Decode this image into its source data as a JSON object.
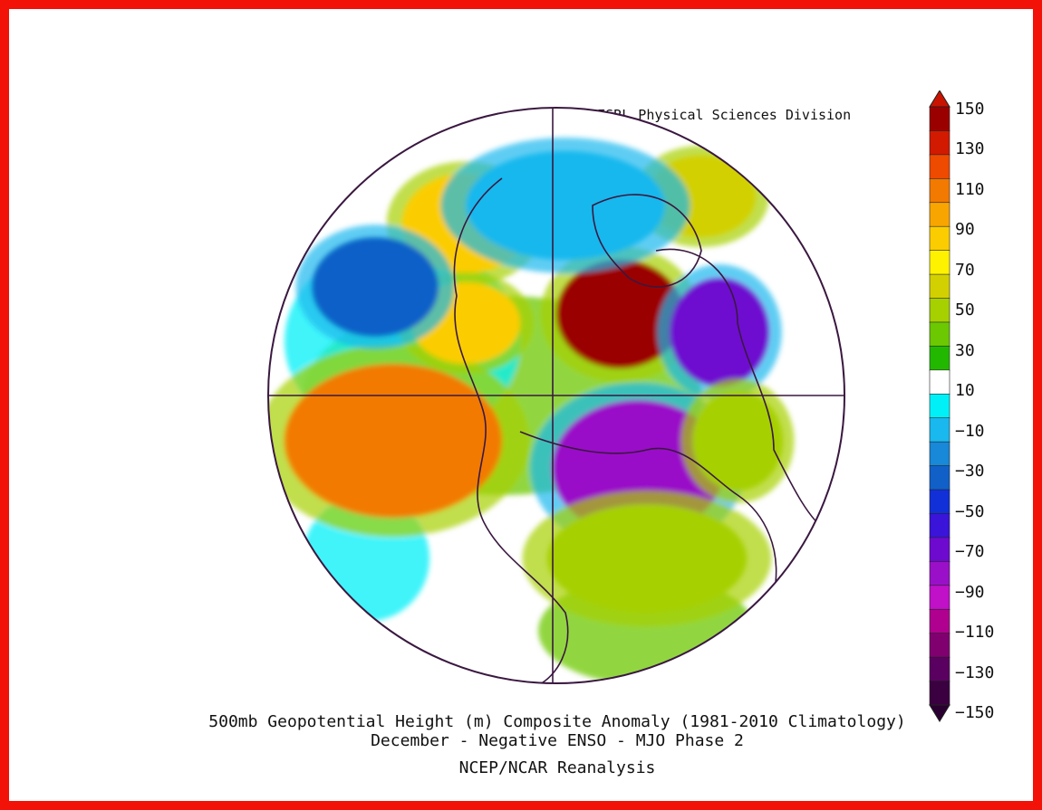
{
  "credit": "NOAA/ESRL Physical Sciences Division",
  "caption": {
    "line1": "500mb Geopotential Height (m) Composite Anomaly (1981-2010 Climatology)",
    "line2": "December - Negative ENSO - MJO Phase 2",
    "line3": "NCEP/NCAR Reanalysis"
  },
  "colorbar": {
    "labels": [
      "150",
      "130",
      "110",
      "90",
      "70",
      "50",
      "30",
      "10",
      "−10",
      "−30",
      "−50",
      "−70",
      "−90",
      "−110",
      "−130",
      "−150"
    ],
    "colors": [
      "#9b0000",
      "#d11a00",
      "#ee4a00",
      "#f27a00",
      "#f8a500",
      "#fbcd00",
      "#fff200",
      "#d2d000",
      "#a6d000",
      "#6cc800",
      "#22b800",
      "#ffffff",
      "#00f0f8",
      "#19b8ee",
      "#1888d8",
      "#1060c8",
      "#1230d8",
      "#3a14d8",
      "#6e0ad0",
      "#9a10c8",
      "#c010c8",
      "#b00090",
      "#800070",
      "#5a0060",
      "#3a0040"
    ],
    "top_triangle_color": "#c81400",
    "bottom_triangle_color": "#2a0030"
  },
  "map": {
    "projection": "north-polar-stereographic",
    "background": "#ffffff",
    "outline_color": "#3a1840",
    "anomalies": [
      {
        "region": "north-atlantic-ridge",
        "value": 70,
        "color": "#fbcd00"
      },
      {
        "region": "north-pacific-ridge",
        "value": 110,
        "color": "#f27a00"
      },
      {
        "region": "eastern-siberia-trough",
        "value": -110,
        "color": "#9a10c8"
      },
      {
        "region": "european-ridge",
        "value": 150,
        "color": "#9b0000"
      },
      {
        "region": "central-asia-trough",
        "value": -90,
        "color": "#6e0ad0"
      },
      {
        "region": "northern-canada-ridge",
        "value": 70,
        "color": "#fbcd00"
      },
      {
        "region": "northwest-pacific-ridge",
        "value": 50,
        "color": "#d2d000"
      },
      {
        "region": "southern-asia-ridge",
        "value": 30,
        "color": "#a6d000"
      },
      {
        "region": "north-africa-ridge",
        "value": 30,
        "color": "#a6d000"
      },
      {
        "region": "southwest-atlantic-trough",
        "value": -50,
        "color": "#1060c8"
      },
      {
        "region": "eastern-pacific-trough",
        "value": -30,
        "color": "#19b8ee"
      }
    ]
  }
}
